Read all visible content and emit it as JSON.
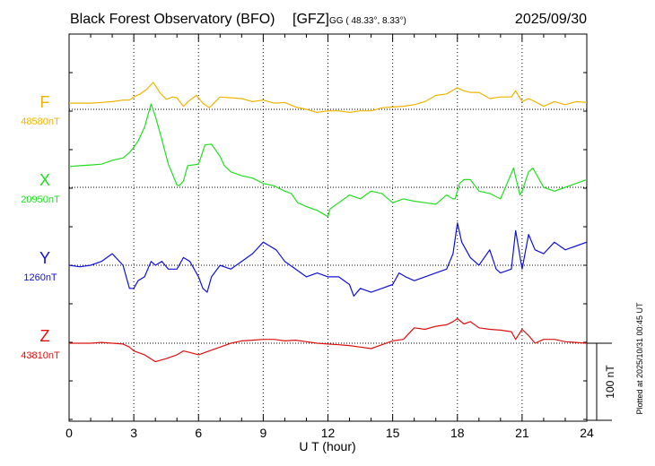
{
  "header": {
    "title": "Black Forest Observatory (BFO)",
    "agency": "[GFZ]",
    "coords": "GG ( 48.33°,   8.33°)",
    "date": "2025/09/30"
  },
  "footer": {
    "plotted": "Plotted at 2025/10/31 00:45 UT"
  },
  "chart_data": {
    "type": "line",
    "xlabel": "U T (hour)",
    "xlim": [
      0,
      24
    ],
    "xticks": [
      "0",
      "3",
      "6",
      "9",
      "12",
      "15",
      "18",
      "21",
      "24"
    ],
    "scale_bar": "100 nT",
    "grid": true,
    "series": [
      {
        "name": "F",
        "baseline_label": "48580nT",
        "color": "#f0b400",
        "x": [
          0,
          0.5,
          1,
          1.5,
          2,
          2.5,
          2.8,
          3,
          3.3,
          3.6,
          3.9,
          4.2,
          4.5,
          4.8,
          5,
          5.3,
          5.6,
          5.9,
          6.2,
          6.5,
          7,
          7.5,
          8,
          8.5,
          9,
          9.5,
          10,
          10.5,
          11,
          11.5,
          12,
          12.5,
          13,
          13.5,
          14,
          14.5,
          15,
          15.5,
          16,
          16.5,
          17,
          17.5,
          18,
          18.3,
          18.6,
          19,
          19.5,
          20,
          20.5,
          20.7,
          21,
          21.3,
          21.6,
          22,
          22.5,
          23,
          23.5,
          24
        ],
        "values": [
          8,
          8,
          8,
          9,
          10,
          12,
          12,
          16,
          20,
          26,
          35,
          22,
          13,
          16,
          15,
          4,
          12,
          18,
          8,
          2,
          16,
          15,
          14,
          10,
          12,
          8,
          9,
          3,
          0,
          -4,
          -2,
          -2,
          -4,
          -2,
          -2,
          2,
          3,
          4,
          6,
          10,
          18,
          20,
          28,
          24,
          22,
          22,
          14,
          16,
          16,
          24,
          10,
          14,
          10,
          4,
          10,
          6,
          10,
          9
        ]
      },
      {
        "name": "X",
        "baseline_label": "20950nT",
        "color": "#22dd22",
        "x": [
          0,
          0.5,
          1,
          1.5,
          2,
          2.5,
          2.8,
          3,
          3.2,
          3.5,
          3.8,
          4,
          4.3,
          4.6,
          5,
          5.1,
          5.3,
          5.5,
          6,
          6.3,
          6.6,
          7,
          7.2,
          7.5,
          8,
          8.5,
          9,
          9.5,
          10,
          10.3,
          10.6,
          11,
          11.5,
          12,
          12.1,
          12.5,
          13,
          13.5,
          14,
          14.5,
          15,
          15.5,
          16,
          16.5,
          17,
          17.5,
          17.8,
          17.9,
          18.1,
          18.3,
          18.6,
          19,
          19.5,
          20,
          20.5,
          20.6,
          20.9,
          21,
          21.3,
          21.5,
          21.8,
          22,
          22.5,
          23,
          23.5,
          24
        ],
        "values": [
          27,
          28,
          29,
          30,
          35,
          38,
          45,
          52,
          60,
          78,
          108,
          92,
          62,
          30,
          3,
          2,
          8,
          28,
          30,
          55,
          56,
          40,
          28,
          20,
          15,
          12,
          5,
          2,
          -5,
          -8,
          -20,
          -25,
          -30,
          -38,
          -28,
          -20,
          -10,
          -15,
          -5,
          -8,
          -20,
          -15,
          -18,
          -20,
          -22,
          -10,
          -15,
          -15,
          5,
          10,
          10,
          -5,
          -8,
          -15,
          18,
          25,
          -10,
          -5,
          20,
          25,
          10,
          0,
          -5,
          0,
          5,
          10
        ]
      },
      {
        "name": "Y",
        "baseline_label": "1260nT",
        "color": "#1010dd",
        "x": [
          0,
          0.5,
          1,
          1.5,
          2,
          2.5,
          2.8,
          3,
          3.2,
          3.5,
          3.8,
          4,
          4.3,
          4.6,
          5,
          5.3,
          5.6,
          6,
          6.2,
          6.4,
          6.6,
          7,
          7.5,
          8,
          8.5,
          9,
          9.3,
          9.6,
          10,
          10.5,
          11,
          11.5,
          12,
          12.5,
          13,
          13.2,
          13.5,
          14,
          14.5,
          15,
          15.3,
          15.6,
          16,
          16.5,
          17,
          17.5,
          17.8,
          18,
          18.2,
          18.6,
          19,
          19.5,
          19.8,
          20,
          20.5,
          20.7,
          21,
          21.3,
          21.6,
          22,
          22.5,
          23,
          23.5,
          24
        ],
        "values": [
          0,
          -2,
          0,
          5,
          15,
          0,
          -30,
          -30,
          -20,
          -15,
          5,
          0,
          5,
          -5,
          -5,
          10,
          5,
          -15,
          -30,
          -35,
          -15,
          0,
          -5,
          5,
          15,
          30,
          25,
          20,
          5,
          -5,
          -15,
          -10,
          -15,
          -15,
          -25,
          -40,
          -30,
          -35,
          -30,
          -25,
          -10,
          -15,
          -20,
          -15,
          -10,
          -5,
          15,
          55,
          30,
          10,
          0,
          20,
          -5,
          -10,
          -5,
          45,
          -5,
          40,
          20,
          15,
          30,
          20,
          25,
          30
        ]
      },
      {
        "name": "Z",
        "baseline_label": "43810nT",
        "color": "#dd1010",
        "x": [
          0,
          0.5,
          1,
          1.5,
          2,
          2.5,
          2.8,
          3,
          3.5,
          4,
          4.5,
          5,
          5.3,
          5.6,
          6,
          6.5,
          7,
          7.5,
          8,
          8.5,
          9,
          9.5,
          10,
          10.5,
          11,
          11.5,
          12,
          12.5,
          13,
          13.5,
          14,
          14.5,
          15,
          15.5,
          16,
          16.5,
          17,
          17.5,
          17.8,
          18,
          18.3,
          18.6,
          19,
          19.5,
          20,
          20.5,
          20.7,
          21,
          21.3,
          21.6,
          22,
          22.5,
          23,
          23.5,
          24
        ],
        "values": [
          0,
          0,
          0,
          1,
          0,
          -1,
          -5,
          -10,
          -15,
          -24,
          -20,
          -15,
          -10,
          -12,
          -15,
          -10,
          -5,
          0,
          3,
          4,
          5,
          5,
          3,
          4,
          2,
          0,
          -1,
          -2,
          -3,
          -5,
          -7,
          -2,
          3,
          5,
          20,
          18,
          22,
          24,
          28,
          32,
          25,
          28,
          20,
          18,
          17,
          15,
          5,
          18,
          10,
          0,
          5,
          5,
          2,
          1,
          0
        ]
      }
    ]
  }
}
